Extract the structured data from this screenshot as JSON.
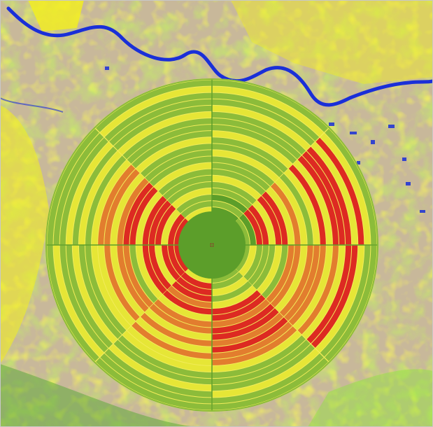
{
  "colors": {
    "background_land": "#c8b89a",
    "vegetation_bright": "#7df020",
    "vegetation_mid": "#9fdc2a",
    "crop_yellow": "#f4f01c",
    "settlement_red": "#e0302a",
    "water_blue": "#1a2fd8",
    "ring_dark_green": "#5c9e2a",
    "ring_green": "#8cbc3a",
    "ring_yellow": "#e6e636",
    "ring_orange": "#e27d2e",
    "ring_red": "#dd2a22",
    "ring_separator": "#f2ec5a"
  },
  "legend_categories": [
    "dark-green",
    "green",
    "yellow",
    "orange",
    "red"
  ],
  "radial_chart": {
    "sectors": 8,
    "rings": 24,
    "sector_ring_pattern": [
      [
        "dark-green",
        "dark-green",
        "dark-green",
        "dark-green",
        "green",
        "dark-green",
        "green",
        "green",
        "yellow",
        "green",
        "green",
        "green",
        "yellow",
        "green",
        "green",
        "yellow",
        "green",
        "green",
        "green",
        "yellow",
        "green",
        "green",
        "yellow",
        "green"
      ],
      [
        "dark-green",
        "dark-green",
        "dark-green",
        "green",
        "dark-green",
        "red",
        "red",
        "yellow",
        "red",
        "red",
        "yellow",
        "orange",
        "yellow",
        "green",
        "yellow",
        "red",
        "yellow",
        "red",
        "red",
        "red",
        "yellow",
        "red",
        "yellow",
        "green"
      ],
      [
        "dark-green",
        "dark-green",
        "dark-green",
        "green",
        "yellow",
        "green",
        "green",
        "green",
        "yellow",
        "green",
        "orange",
        "orange",
        "yellow",
        "orange",
        "orange",
        "orange",
        "yellow",
        "orange",
        "yellow",
        "red",
        "red",
        "yellow",
        "green",
        "green"
      ],
      [
        "dark-green",
        "dark-green",
        "dark-green",
        "green",
        "green",
        "yellow",
        "green",
        "yellow",
        "red",
        "red",
        "orange",
        "red",
        "red",
        "orange",
        "red",
        "orange",
        "orange",
        "yellow",
        "green",
        "green",
        "green",
        "yellow",
        "green",
        "green"
      ],
      [
        "dark-green",
        "dark-green",
        "green",
        "yellow",
        "red",
        "red",
        "red",
        "orange",
        "red",
        "yellow",
        "orange",
        "orange",
        "yellow",
        "orange",
        "yellow",
        "orange",
        "yellow",
        "yellow",
        "green",
        "green",
        "yellow",
        "green",
        "green",
        "green"
      ],
      [
        "dark-green",
        "dark-green",
        "yellow",
        "red",
        "red",
        "red",
        "yellow",
        "red",
        "red",
        "yellow",
        "green",
        "orange",
        "orange",
        "yellow",
        "orange",
        "yellow",
        "yellow",
        "green",
        "green",
        "yellow",
        "green",
        "green",
        "yellow",
        "green"
      ],
      [
        "dark-green",
        "green",
        "dark-green",
        "red",
        "red",
        "yellow",
        "red",
        "red",
        "red",
        "yellow",
        "red",
        "red",
        "orange",
        "yellow",
        "orange",
        "orange",
        "yellow",
        "green",
        "yellow",
        "green",
        "yellow",
        "green",
        "green",
        "green"
      ],
      [
        "dark-green",
        "dark-green",
        "green",
        "yellow",
        "green",
        "green",
        "yellow",
        "green",
        "green",
        "green",
        "yellow",
        "green",
        "green",
        "green",
        "yellow",
        "green",
        "green",
        "green",
        "yellow",
        "green",
        "green",
        "green",
        "yellow",
        "green"
      ]
    ]
  }
}
